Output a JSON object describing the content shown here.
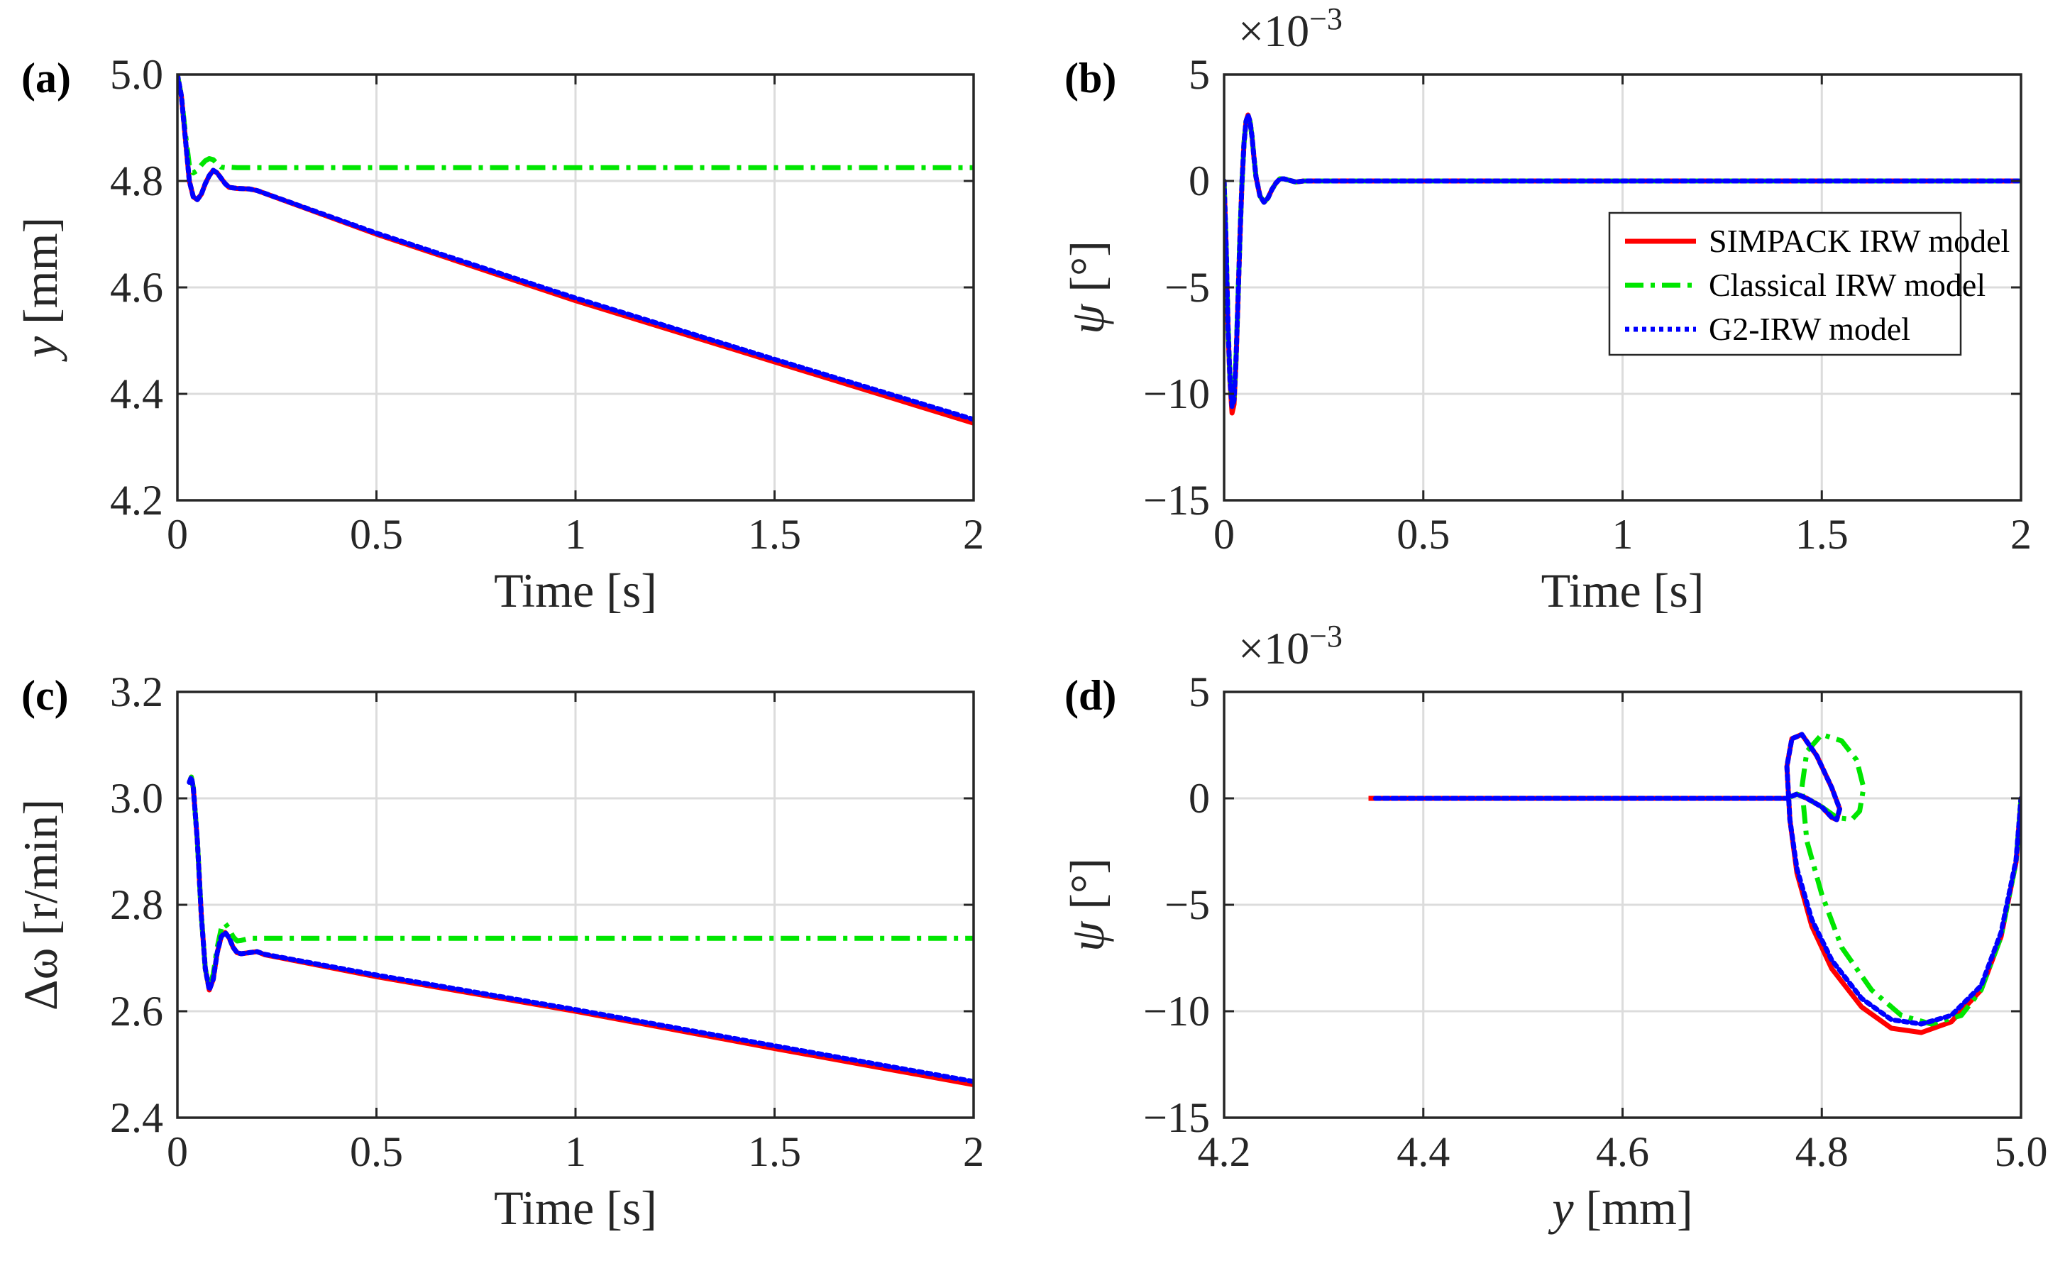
{
  "chart_data": [
    {
      "id": "a",
      "panel_label": "(a)",
      "type": "line",
      "xlabel": "Time [s]",
      "ylabel_var": "y",
      "ylabel_unit": " [mm]",
      "xlim": [
        0,
        2
      ],
      "ylim": [
        4.2,
        5.0
      ],
      "xticks": [
        0,
        0.5,
        1,
        1.5,
        2
      ],
      "xtick_labels": [
        "0",
        "0.5",
        "1",
        "1.5",
        "2"
      ],
      "yticks": [
        4.2,
        4.4,
        4.6,
        4.8,
        5.0
      ],
      "ytick_labels": [
        "4.2",
        "4.4",
        "4.6",
        "4.8",
        "5.0"
      ],
      "grid": true,
      "series": [
        {
          "name": "SIMPACK IRW model",
          "color": "#ff0000",
          "dash": "solid",
          "x": [
            0,
            0.01,
            0.02,
            0.03,
            0.04,
            0.05,
            0.06,
            0.07,
            0.08,
            0.09,
            0.1,
            0.11,
            0.12,
            0.13,
            0.15,
            0.18,
            0.2,
            0.5,
            1.0,
            1.5,
            2.0
          ],
          "y": [
            5.0,
            4.96,
            4.88,
            4.8,
            4.77,
            4.765,
            4.775,
            4.795,
            4.81,
            4.82,
            4.815,
            4.805,
            4.795,
            4.788,
            4.786,
            4.785,
            4.782,
            4.7,
            4.575,
            4.46,
            4.345
          ]
        },
        {
          "name": "Classical IRW model",
          "color": "#00e600",
          "dash": "dashdot",
          "x": [
            0,
            0.01,
            0.02,
            0.03,
            0.04,
            0.05,
            0.06,
            0.07,
            0.08,
            0.09,
            0.1,
            0.11,
            0.12,
            0.13,
            0.15,
            0.2,
            0.5,
            1.0,
            1.5,
            2.0
          ],
          "y": [
            5.0,
            4.96,
            4.89,
            4.83,
            4.815,
            4.82,
            4.83,
            4.838,
            4.842,
            4.84,
            4.832,
            4.826,
            4.825,
            4.826,
            4.825,
            4.825,
            4.825,
            4.825,
            4.825,
            4.825
          ]
        },
        {
          "name": "G2-IRW model",
          "color": "#0000ff",
          "dash": "dotted",
          "x": [
            0,
            0.01,
            0.02,
            0.03,
            0.04,
            0.05,
            0.06,
            0.07,
            0.08,
            0.09,
            0.1,
            0.11,
            0.12,
            0.13,
            0.15,
            0.18,
            0.2,
            0.5,
            1.0,
            1.5,
            2.0
          ],
          "y": [
            5.0,
            4.96,
            4.88,
            4.8,
            4.77,
            4.765,
            4.775,
            4.795,
            4.81,
            4.82,
            4.815,
            4.805,
            4.795,
            4.788,
            4.786,
            4.785,
            4.782,
            4.702,
            4.58,
            4.465,
            4.352
          ]
        }
      ]
    },
    {
      "id": "b",
      "panel_label": "(b)",
      "type": "line",
      "xlabel": "Time [s]",
      "ylabel_var": "ψ",
      "ylabel_unit": " [°]",
      "exponent_base": "×10",
      "exponent_power": "−3",
      "xlim": [
        0,
        2
      ],
      "ylim": [
        -15,
        5
      ],
      "xticks": [
        0,
        0.5,
        1,
        1.5,
        2
      ],
      "xtick_labels": [
        "0",
        "0.5",
        "1",
        "1.5",
        "2"
      ],
      "yticks": [
        -15,
        -10,
        -5,
        0,
        5
      ],
      "ytick_labels": [
        "−15",
        "−10",
        "−5",
        "0",
        "5"
      ],
      "grid": true,
      "legend": [
        "SIMPACK IRW model",
        "Classical IRW model",
        "G2-IRW model"
      ],
      "legend_position": "center-right",
      "series": [
        {
          "name": "SIMPACK IRW model",
          "color": "#ff0000",
          "dash": "solid",
          "x": [
            0,
            0.005,
            0.01,
            0.015,
            0.02,
            0.025,
            0.03,
            0.035,
            0.04,
            0.045,
            0.05,
            0.055,
            0.06,
            0.065,
            0.07,
            0.075,
            0.08,
            0.09,
            0.1,
            0.11,
            0.12,
            0.13,
            0.14,
            0.15,
            0.16,
            0.17,
            0.18,
            0.2,
            0.22,
            0.25,
            0.3,
            1.0,
            2.0
          ],
          "y": [
            0,
            -3,
            -7,
            -9.5,
            -10.9,
            -10.5,
            -8.5,
            -5.5,
            -2.5,
            0,
            1.8,
            2.8,
            3.1,
            2.8,
            2.1,
            1.1,
            0.2,
            -0.7,
            -1.0,
            -0.8,
            -0.4,
            -0.1,
            0.1,
            0.1,
            0.05,
            0,
            -0.05,
            0,
            0,
            0,
            0,
            0,
            0
          ]
        },
        {
          "name": "Classical IRW model",
          "color": "#00e600",
          "dash": "dashdot",
          "x": [
            0,
            0.005,
            0.01,
            0.015,
            0.02,
            0.025,
            0.03,
            0.035,
            0.04,
            0.045,
            0.05,
            0.055,
            0.06,
            0.065,
            0.07,
            0.075,
            0.08,
            0.09,
            0.1,
            0.11,
            0.12,
            0.13,
            0.14,
            0.15,
            0.16,
            0.17,
            0.18,
            0.2,
            0.22,
            0.25,
            0.3,
            1.0,
            2.0
          ],
          "y": [
            0,
            -3,
            -6.8,
            -9.3,
            -10.5,
            -10.2,
            -8.3,
            -5.4,
            -2.4,
            0,
            1.8,
            2.8,
            3.0,
            2.8,
            2.1,
            1.1,
            0.2,
            -0.7,
            -1.0,
            -0.8,
            -0.4,
            -0.1,
            0.1,
            0.1,
            0.05,
            0,
            -0.05,
            0,
            0,
            0,
            0,
            0,
            0
          ]
        },
        {
          "name": "G2-IRW model",
          "color": "#0000ff",
          "dash": "dotted",
          "x": [
            0,
            0.005,
            0.01,
            0.015,
            0.02,
            0.025,
            0.03,
            0.035,
            0.04,
            0.045,
            0.05,
            0.055,
            0.06,
            0.065,
            0.07,
            0.075,
            0.08,
            0.09,
            0.1,
            0.11,
            0.12,
            0.13,
            0.14,
            0.15,
            0.16,
            0.17,
            0.18,
            0.2,
            0.22,
            0.25,
            0.3,
            1.0,
            2.0
          ],
          "y": [
            0,
            -3,
            -6.9,
            -9.4,
            -10.6,
            -10.3,
            -8.4,
            -5.5,
            -2.5,
            0,
            1.8,
            2.8,
            3.1,
            2.8,
            2.1,
            1.1,
            0.2,
            -0.7,
            -1.0,
            -0.8,
            -0.4,
            -0.1,
            0.1,
            0.1,
            0.05,
            0,
            -0.05,
            0,
            0,
            0,
            0,
            0,
            0
          ]
        }
      ]
    },
    {
      "id": "c",
      "panel_label": "(c)",
      "type": "line",
      "xlabel": "Time [s]",
      "ylabel_var": "Δω",
      "ylabel_unit": " [r/min]",
      "xlim": [
        0,
        2
      ],
      "ylim": [
        2.4,
        3.2
      ],
      "xticks": [
        0,
        0.5,
        1,
        1.5,
        2
      ],
      "xtick_labels": [
        "0",
        "0.5",
        "1",
        "1.5",
        "2"
      ],
      "yticks": [
        2.4,
        2.6,
        2.8,
        3.0,
        3.2
      ],
      "ytick_labels": [
        "2.4",
        "2.6",
        "2.8",
        "3.0",
        "3.2"
      ],
      "grid": true,
      "series": [
        {
          "name": "SIMPACK IRW model",
          "color": "#ff0000",
          "dash": "solid",
          "x": [
            0.03,
            0.035,
            0.04,
            0.05,
            0.06,
            0.07,
            0.08,
            0.09,
            0.1,
            0.11,
            0.12,
            0.13,
            0.14,
            0.15,
            0.16,
            0.18,
            0.2,
            0.22,
            0.5,
            1.0,
            1.5,
            2.0
          ],
          "y": [
            3.03,
            3.04,
            3.02,
            2.92,
            2.78,
            2.68,
            2.64,
            2.66,
            2.71,
            2.74,
            2.748,
            2.738,
            2.72,
            2.71,
            2.708,
            2.71,
            2.712,
            2.706,
            2.665,
            2.6,
            2.53,
            2.462
          ]
        },
        {
          "name": "Classical IRW model",
          "color": "#00e600",
          "dash": "dashdot",
          "x": [
            0.03,
            0.035,
            0.04,
            0.05,
            0.06,
            0.07,
            0.08,
            0.09,
            0.1,
            0.11,
            0.12,
            0.13,
            0.14,
            0.15,
            0.16,
            0.18,
            0.2,
            0.5,
            1.0,
            1.5,
            2.0
          ],
          "y": [
            3.03,
            3.04,
            3.02,
            2.92,
            2.78,
            2.68,
            2.645,
            2.67,
            2.72,
            2.755,
            2.765,
            2.755,
            2.74,
            2.732,
            2.733,
            2.737,
            2.737,
            2.737,
            2.737,
            2.737,
            2.737
          ]
        },
        {
          "name": "G2-IRW model",
          "color": "#0000ff",
          "dash": "dotted",
          "x": [
            0.03,
            0.035,
            0.04,
            0.05,
            0.06,
            0.07,
            0.08,
            0.09,
            0.1,
            0.11,
            0.12,
            0.13,
            0.14,
            0.15,
            0.16,
            0.18,
            0.2,
            0.22,
            0.5,
            1.0,
            1.5,
            2.0
          ],
          "y": [
            3.03,
            3.04,
            3.02,
            2.92,
            2.78,
            2.68,
            2.64,
            2.66,
            2.71,
            2.74,
            2.748,
            2.738,
            2.72,
            2.71,
            2.708,
            2.71,
            2.712,
            2.707,
            2.668,
            2.603,
            2.535,
            2.468
          ]
        }
      ]
    },
    {
      "id": "d",
      "panel_label": "(d)",
      "type": "line",
      "xlabel_var": "y",
      "xlabel_unit": " [mm]",
      "ylabel_var": "ψ",
      "ylabel_unit": " [°]",
      "exponent_base": "×10",
      "exponent_power": "−3",
      "xlim": [
        4.2,
        5.0
      ],
      "ylim": [
        -15,
        5
      ],
      "xticks": [
        4.2,
        4.4,
        4.6,
        4.8,
        5.0
      ],
      "xtick_labels": [
        "4.2",
        "4.4",
        "4.6",
        "4.8",
        "5.0"
      ],
      "yticks": [
        -15,
        -10,
        -5,
        0,
        5
      ],
      "ytick_labels": [
        "−15",
        "−10",
        "−5",
        "0",
        "5"
      ],
      "grid": true,
      "series": [
        {
          "name": "SIMPACK IRW model",
          "color": "#ff0000",
          "dash": "solid",
          "x": [
            4.345,
            4.5,
            4.7,
            4.765,
            4.775,
            4.785,
            4.8,
            4.81,
            4.815,
            4.818,
            4.81,
            4.795,
            4.78,
            4.77,
            4.765,
            4.768,
            4.775,
            4.79,
            4.81,
            4.84,
            4.87,
            4.9,
            4.93,
            4.96,
            4.98,
            4.995,
            5.0
          ],
          "y": [
            0,
            0,
            0,
            0,
            0.2,
            0,
            -0.4,
            -0.9,
            -1.0,
            -0.5,
            0.5,
            2.0,
            3.0,
            2.8,
            1.5,
            -1.0,
            -3.5,
            -6.0,
            -8.0,
            -9.8,
            -10.8,
            -11.0,
            -10.5,
            -9.0,
            -6.5,
            -3.0,
            0
          ]
        },
        {
          "name": "Classical IRW model",
          "color": "#00e600",
          "dash": "dashdot",
          "x": [
            4.765,
            4.775,
            4.785,
            4.8,
            4.815,
            4.83,
            4.838,
            4.842,
            4.835,
            4.82,
            4.8,
            4.785,
            4.78,
            4.785,
            4.8,
            4.82,
            4.85,
            4.88,
            4.91,
            4.94,
            4.96,
            4.98,
            4.995,
            5.0
          ],
          "y": [
            0,
            0.2,
            0,
            -0.4,
            -0.9,
            -1.0,
            -0.6,
            0.5,
            1.8,
            2.7,
            3.0,
            2.2,
            0.5,
            -2.0,
            -4.5,
            -7.0,
            -9.0,
            -10.2,
            -10.6,
            -10.2,
            -9.0,
            -6.5,
            -3.0,
            0
          ]
        },
        {
          "name": "G2-IRW model",
          "color": "#0000ff",
          "dash": "dotted",
          "x": [
            4.352,
            4.5,
            4.7,
            4.765,
            4.775,
            4.785,
            4.8,
            4.81,
            4.815,
            4.818,
            4.81,
            4.795,
            4.78,
            4.77,
            4.765,
            4.768,
            4.775,
            4.79,
            4.81,
            4.84,
            4.87,
            4.9,
            4.93,
            4.96,
            4.98,
            4.995,
            5.0
          ],
          "y": [
            0,
            0,
            0,
            0,
            0.2,
            0,
            -0.4,
            -0.9,
            -1.0,
            -0.5,
            0.5,
            2.0,
            3.0,
            2.8,
            1.5,
            -1.0,
            -3.3,
            -5.7,
            -7.6,
            -9.4,
            -10.4,
            -10.6,
            -10.2,
            -8.8,
            -6.3,
            -2.9,
            0
          ]
        }
      ]
    }
  ]
}
